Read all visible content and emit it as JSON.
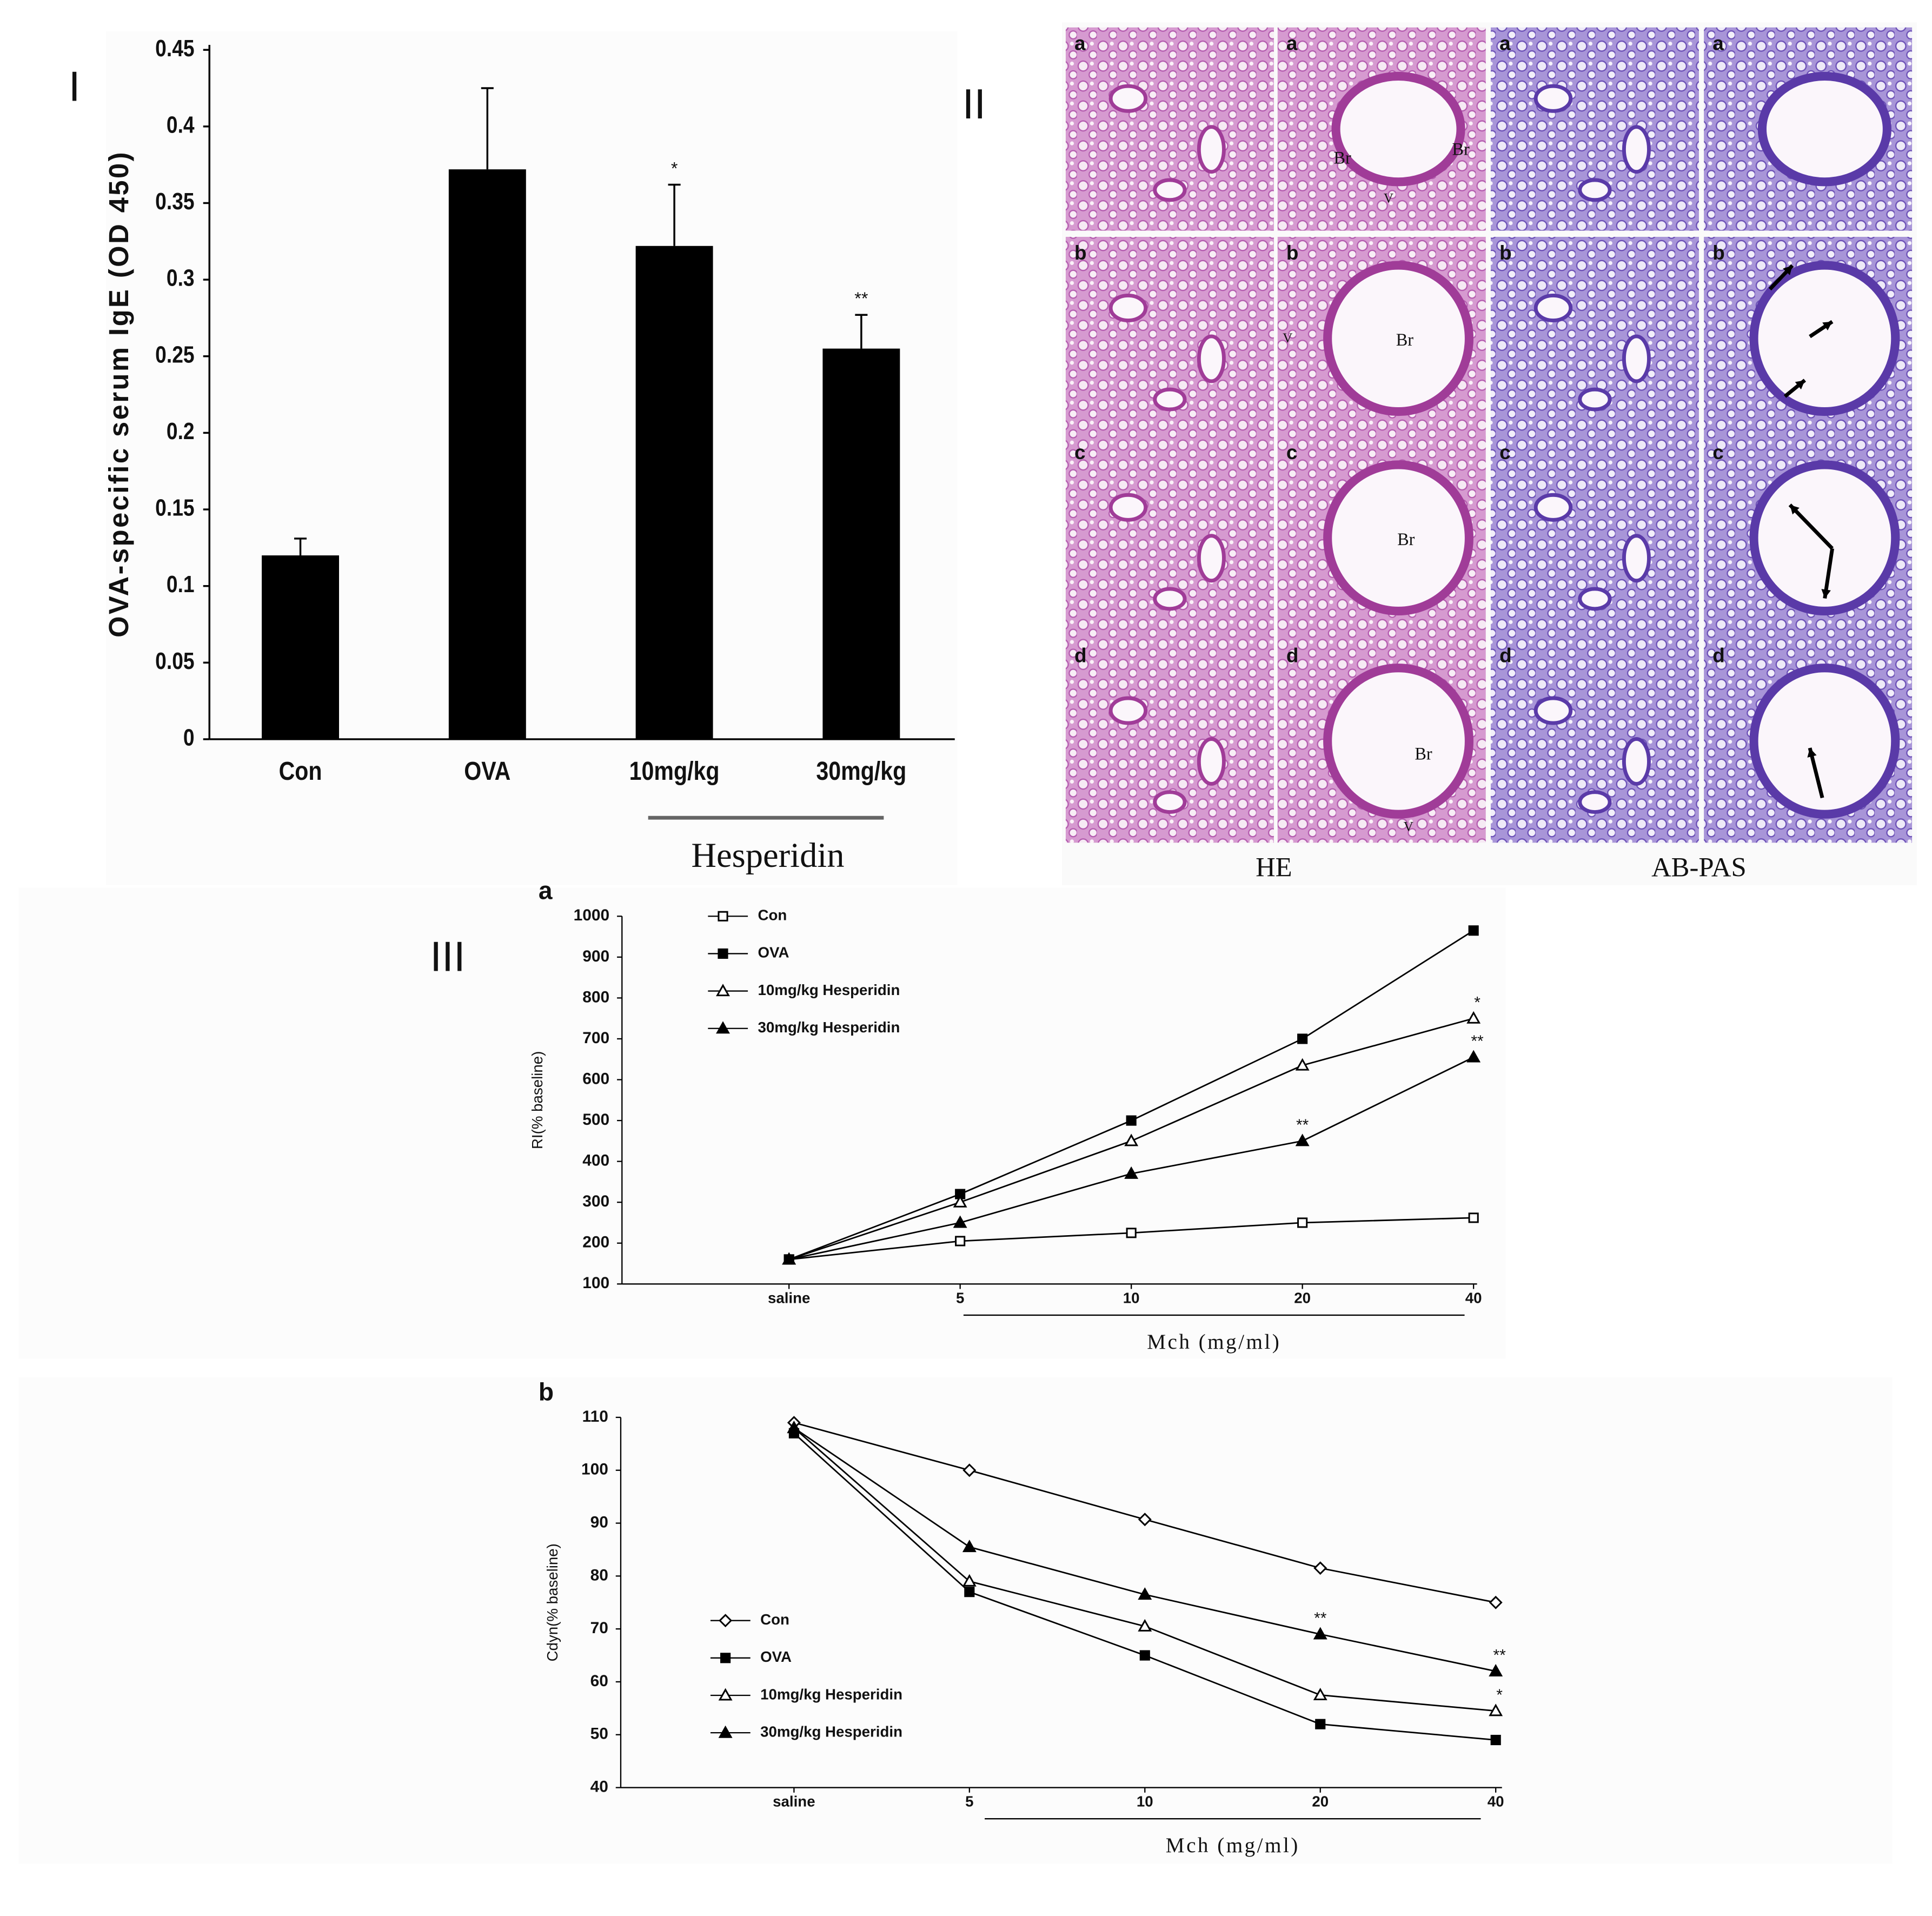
{
  "panel_labels": [
    "I",
    "II",
    "III"
  ],
  "chart_data": [
    {
      "type": "bar",
      "ylabel": "OVA-specific serum IgE (OD 450)",
      "categories": [
        "Con",
        "OVA",
        "10mg/kg",
        "30mg/kg"
      ],
      "values": [
        0.12,
        0.372,
        0.322,
        0.255
      ],
      "errors": [
        0.011,
        0.053,
        0.04,
        0.022
      ],
      "significance": [
        null,
        null,
        "*",
        "**"
      ],
      "group_label": "Hesperidin",
      "color": "#000000",
      "ylim": [
        0,
        0.45
      ],
      "yticks": [
        0,
        0.05,
        0.1,
        0.15,
        0.2,
        0.25,
        0.3,
        0.35,
        0.4,
        0.45
      ]
    },
    {
      "type": "line",
      "panel": "a",
      "ylabel": "RI(% baseline)",
      "xlabel": "Mch (mg/ml)",
      "categories": [
        "saline",
        "5",
        "10",
        "20",
        "40"
      ],
      "ylim": [
        100,
        1000
      ],
      "yticks": [
        100,
        200,
        300,
        400,
        500,
        600,
        700,
        800,
        900,
        1000
      ],
      "legend": "upper left",
      "series": [
        {
          "name": "Con",
          "color": "#000000",
          "marker": "open-square",
          "values": [
            160,
            205,
            225,
            250,
            262
          ],
          "significance": [
            null,
            null,
            null,
            null,
            null
          ]
        },
        {
          "name": "OVA",
          "color": "#000000",
          "marker": "filled-square",
          "values": [
            160,
            320,
            500,
            700,
            965
          ],
          "significance": [
            null,
            null,
            null,
            null,
            null
          ]
        },
        {
          "name": "10mg/kg Hesperidin",
          "color": "#000000",
          "marker": "open-triangle",
          "values": [
            160,
            300,
            450,
            635,
            750
          ],
          "significance": [
            null,
            null,
            null,
            null,
            "*"
          ]
        },
        {
          "name": "30mg/kg Hesperidin",
          "color": "#000000",
          "marker": "filled-triangle",
          "values": [
            160,
            250,
            370,
            450,
            655
          ],
          "significance": [
            null,
            null,
            null,
            "**",
            "**"
          ]
        }
      ]
    },
    {
      "type": "line",
      "panel": "b",
      "ylabel": "Cdyn(% baseline)",
      "xlabel": "Mch (mg/ml)",
      "categories": [
        "saline",
        "5",
        "10",
        "20",
        "40"
      ],
      "ylim": [
        40,
        110
      ],
      "yticks": [
        40,
        50,
        60,
        70,
        80,
        90,
        100,
        110
      ],
      "legend": "lower left",
      "series": [
        {
          "name": "Con",
          "color": "#000000",
          "marker": "open-diamond",
          "values": [
            109,
            100,
            90.7,
            81.5,
            75
          ],
          "significance": [
            null,
            null,
            null,
            null,
            null
          ]
        },
        {
          "name": "OVA",
          "color": "#000000",
          "marker": "filled-square",
          "values": [
            107,
            77,
            65,
            52,
            49
          ],
          "significance": [
            null,
            null,
            null,
            null,
            null
          ]
        },
        {
          "name": "10mg/kg Hesperidin",
          "color": "#000000",
          "marker": "open-triangle",
          "values": [
            108,
            79,
            70.5,
            57.5,
            54.5
          ],
          "significance": [
            null,
            null,
            null,
            null,
            "*"
          ]
        },
        {
          "name": "30mg/kg Hesperidin",
          "color": "#000000",
          "marker": "filled-triangle",
          "values": [
            108,
            85.5,
            76.5,
            69,
            62
          ],
          "significance": [
            null,
            null,
            null,
            "**",
            "**"
          ]
        }
      ]
    }
  ],
  "histology": {
    "row_labels": [
      "a",
      "b",
      "c",
      "d"
    ],
    "column_groups": [
      "HE",
      "AB-PAS"
    ],
    "bronchus_label": "Br",
    "vessel_label": "V"
  }
}
